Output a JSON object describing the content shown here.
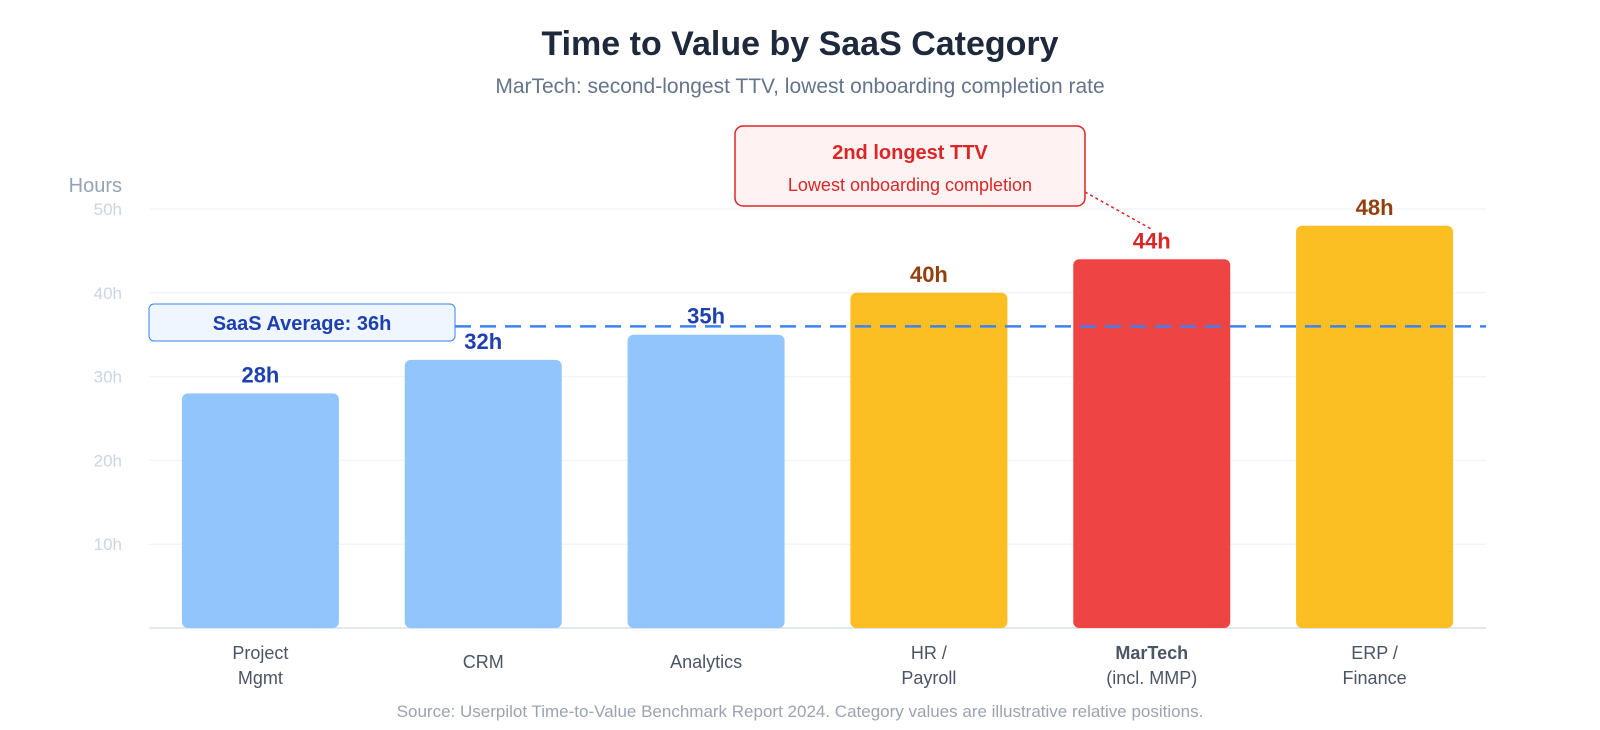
{
  "chart_data": {
    "type": "bar",
    "title": "Time to Value by SaaS Category",
    "subtitle": "MarTech: second-longest TTV, lowest onboarding completion rate",
    "ylabel": "Hours",
    "ylim": [
      0,
      50
    ],
    "yticks": [
      10,
      20,
      30,
      40,
      50
    ],
    "ytick_labels": [
      "10h",
      "20h",
      "30h",
      "40h",
      "50h"
    ],
    "grid": true,
    "bars": [
      {
        "category": [
          "Project",
          "Mgmt"
        ],
        "value": 28,
        "label": "28h",
        "group": "below"
      },
      {
        "category": [
          "CRM"
        ],
        "value": 32,
        "label": "32h",
        "group": "below"
      },
      {
        "category": [
          "Analytics"
        ],
        "value": 35,
        "label": "35h",
        "group": "below"
      },
      {
        "category": [
          "HR /",
          "Payroll"
        ],
        "value": 40,
        "label": "40h",
        "group": "above"
      },
      {
        "category": [
          "MarTech",
          "(incl. MMP)"
        ],
        "value": 44,
        "label": "44h",
        "group": "highlight"
      },
      {
        "category": [
          "ERP /",
          "Finance"
        ],
        "value": 48,
        "label": "48h",
        "group": "above"
      }
    ],
    "reference_line": {
      "value": 36,
      "label": "SaaS Average: 36h"
    },
    "annotation": {
      "target_index": 4,
      "title": "2nd longest TTV",
      "text": "Lowest onboarding completion"
    },
    "source": "Source: Userpilot Time-to-Value Benchmark Report 2024. Category values are illustrative relative positions.",
    "colors": {
      "below": "#93c5fd",
      "below_label": "#1e40af",
      "above": "#fbbf24",
      "above_label": "#92400e",
      "highlight": "#ef4444",
      "highlight_label": "#dc2626",
      "avg_line": "#3b82f6",
      "grid": "#f1f5f9",
      "baseline": "#e2e8f0"
    }
  }
}
